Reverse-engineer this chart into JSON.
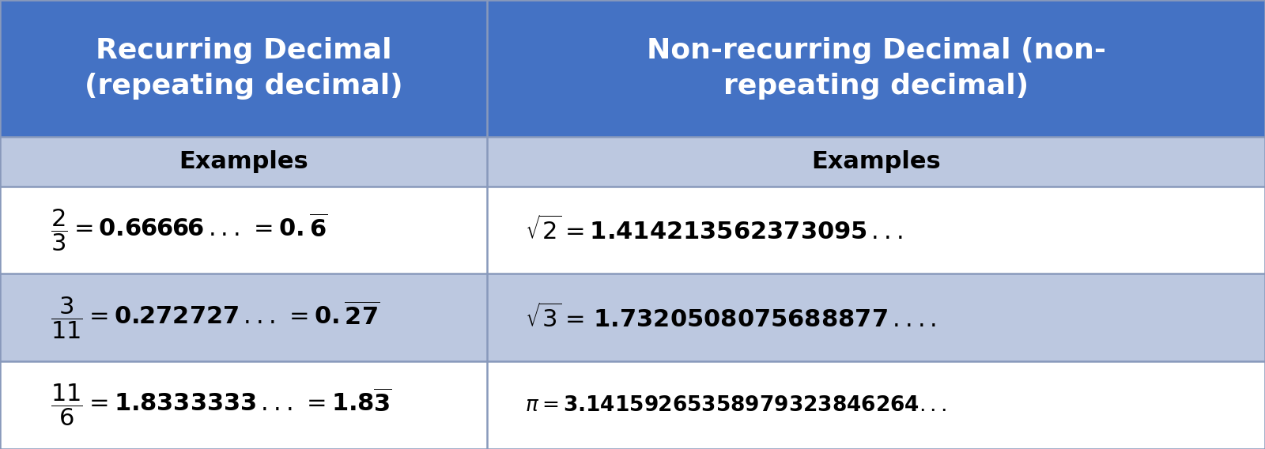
{
  "fig_width": 16.0,
  "fig_height": 5.68,
  "dpi": 100,
  "header_bg_color": "#4472C4",
  "subheader_bg_color": "#BCC8E0",
  "row_odd_bg_color": "#FFFFFF",
  "row_even_bg_color": "#BCC8E0",
  "border_color": "#8899BB",
  "header_text_color": "#FFFFFF",
  "subheader_text_color": "#000000",
  "cell_text_color": "#000000",
  "col1_header": "Recurring Decimal\n(repeating decimal)",
  "col2_header": "Non-recurring Decimal (non-\nrepeating decimal)",
  "subheader": "Examples",
  "col_split": 0.385,
  "rows": [
    [
      0.695,
      1.0
    ],
    [
      0.585,
      0.695
    ],
    [
      0.39,
      0.585
    ],
    [
      0.195,
      0.39
    ],
    [
      0.0,
      0.195
    ]
  ],
  "math_row1_col1": "$\\dfrac{2}{3} = \\mathbf{0.66666}\\,...\\, = \\mathbf{0.\\overline{6}}$",
  "math_row2_col1": "$\\dfrac{3}{11} = \\mathbf{0.272727}\\,...\\, = \\mathbf{0.\\overline{27}}$",
  "math_row3_col1": "$\\dfrac{11}{6} = \\mathbf{1.8333333}\\,...\\, = \\mathbf{1.8\\overline{3}}$",
  "math_row1_col2": "$\\sqrt{2} = \\mathbf{1.414213562373095}\\,...$",
  "math_row2_col2": "$\\sqrt{3} = \\, \\mathbf{1.7320508075688877}\\,....$",
  "math_row3_col2": "$\\pi =\\mathbf{3.14159265358979323846264}...$",
  "header_fontsize": 26,
  "subheader_fontsize": 22,
  "math_fontsize": 22,
  "pi_fontsize": 19
}
